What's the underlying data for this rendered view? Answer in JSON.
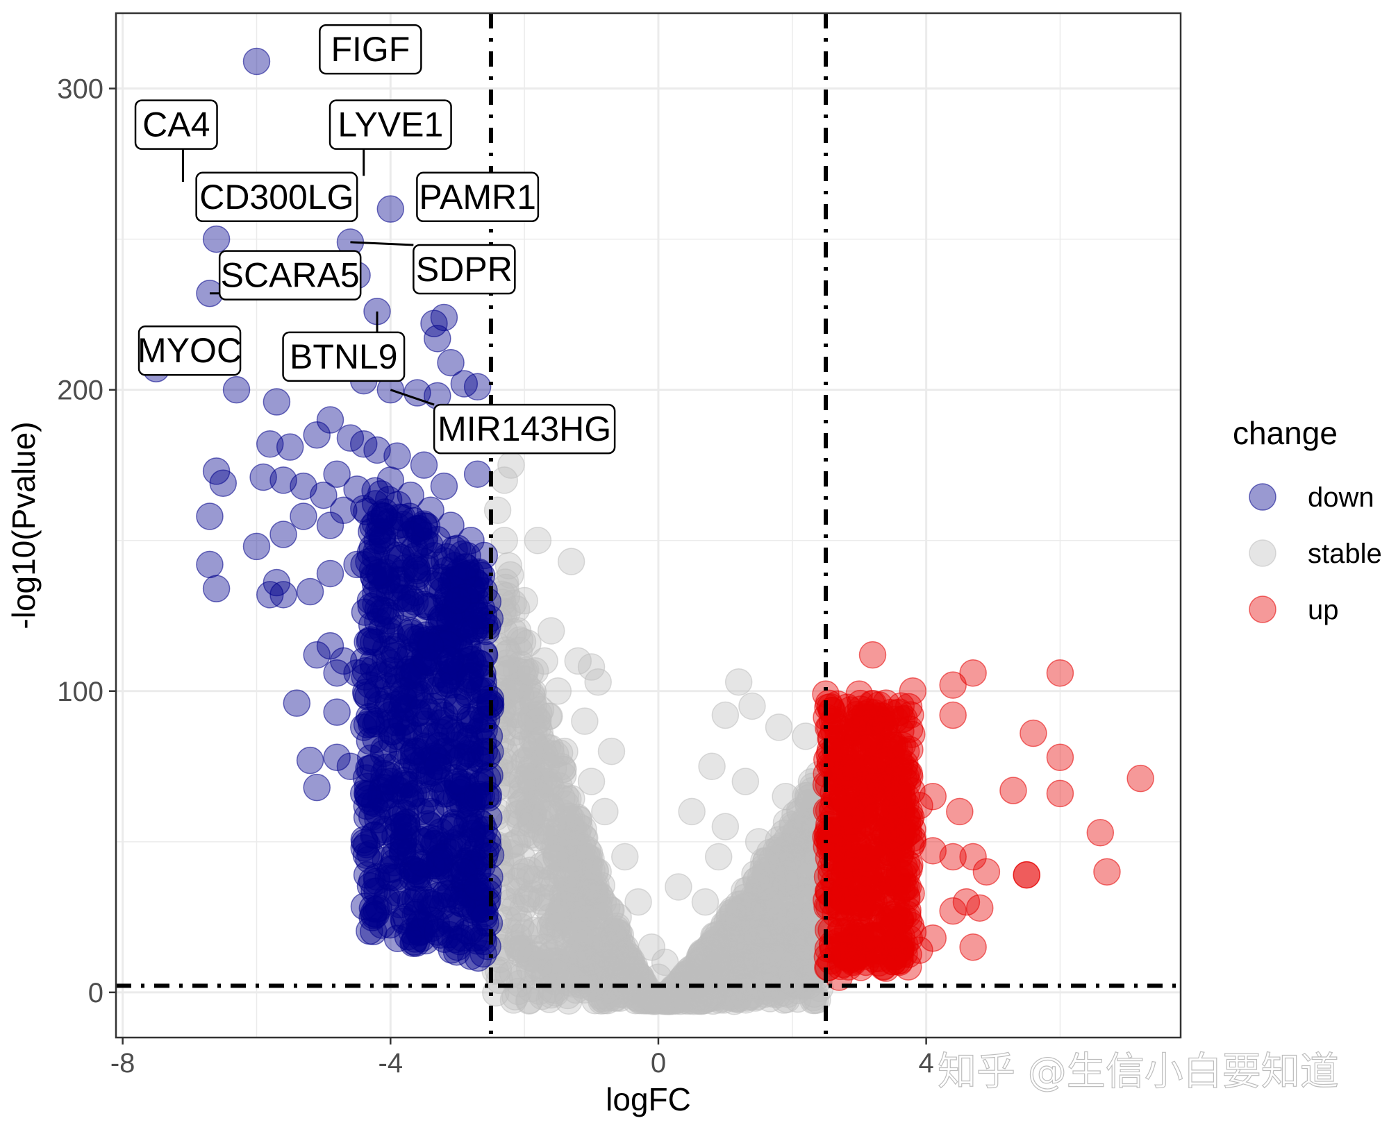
{
  "chart_data": {
    "type": "scatter",
    "title": "",
    "xlabel": "logFC",
    "ylabel": "-log10(Pvalue)",
    "xlim": [
      -8.1,
      7.8
    ],
    "ylim": [
      -15,
      325
    ],
    "x_ticks": [
      -8,
      -4,
      0,
      4
    ],
    "y_ticks": [
      0,
      100,
      200,
      300
    ],
    "x_tick_labels": [
      "-8",
      "-4",
      "0",
      "4"
    ],
    "y_tick_labels": [
      "0",
      "100",
      "200",
      "300"
    ],
    "grid": true,
    "legend": {
      "title": "change",
      "placement": "right",
      "entries": [
        "down",
        "stable",
        "up"
      ]
    },
    "colors": {
      "down": "#00008B",
      "stable": "#BEBEBE",
      "up": "#E50000"
    },
    "point_alpha": 0.4,
    "thresholds": {
      "logFC": [
        -2.5,
        2.5
      ],
      "neg_log10_p": 2.2
    },
    "series": [
      {
        "name": "down",
        "note": "one dense band of points spans logFC -4.5 to -2.5, -log10(P) 10 to 160",
        "points": [
          [
            -6,
            309
          ],
          [
            -4.0,
            260
          ],
          [
            -6.6,
            250
          ],
          [
            -4.6,
            249
          ],
          [
            -6.7,
            232
          ],
          [
            -4.2,
            226
          ],
          [
            -4.5,
            238
          ],
          [
            -3.2,
            224
          ],
          [
            -3.35,
            222
          ],
          [
            -3.3,
            217
          ],
          [
            -3.1,
            209
          ],
          [
            -7.5,
            207
          ],
          [
            -6.3,
            200
          ],
          [
            -5.7,
            196
          ],
          [
            -4.4,
            203
          ],
          [
            -4.0,
            200
          ],
          [
            -3.6,
            199
          ],
          [
            -3.3,
            198
          ],
          [
            -2.9,
            202
          ],
          [
            -2.7,
            201
          ],
          [
            -5.8,
            182
          ],
          [
            -5.5,
            181
          ],
          [
            -5.1,
            185
          ],
          [
            -4.9,
            190
          ],
          [
            -4.6,
            184
          ],
          [
            -4.4,
            182
          ],
          [
            -4.2,
            180
          ],
          [
            -3.9,
            178
          ],
          [
            -6.6,
            173
          ],
          [
            -6.5,
            169
          ],
          [
            -5.9,
            171
          ],
          [
            -5.6,
            170
          ],
          [
            -5.3,
            168
          ],
          [
            -5.0,
            165
          ],
          [
            -4.8,
            172
          ],
          [
            -4.5,
            167
          ],
          [
            -3.5,
            175
          ],
          [
            -3.2,
            168
          ],
          [
            -2.7,
            172
          ],
          [
            -6.7,
            158
          ],
          [
            -5.6,
            152
          ],
          [
            -5.3,
            158
          ],
          [
            -4.9,
            155
          ],
          [
            -4.7,
            160
          ],
          [
            -4.1,
            158
          ],
          [
            -6.0,
            148
          ],
          [
            -5.7,
            136
          ],
          [
            -5.8,
            132
          ],
          [
            -5.6,
            132
          ],
          [
            -6.7,
            142
          ],
          [
            -6.6,
            134
          ],
          [
            -5.2,
            133
          ],
          [
            -4.9,
            139
          ],
          [
            -4.5,
            142
          ],
          [
            -5.1,
            112
          ],
          [
            -4.9,
            115
          ],
          [
            -4.7,
            110
          ],
          [
            -4.8,
            106
          ],
          [
            -4.5,
            106
          ],
          [
            -4.3,
            117
          ],
          [
            -5.4,
            96
          ],
          [
            -4.8,
            93
          ],
          [
            -4.4,
            88
          ],
          [
            -5.2,
            77
          ],
          [
            -5.1,
            68
          ],
          [
            -4.8,
            78
          ],
          [
            -4.6,
            75
          ],
          [
            -4.4,
            66
          ],
          [
            -4.2,
            60
          ],
          [
            -4.3,
            46
          ],
          [
            -4.0,
            41
          ],
          [
            -3.9,
            33
          ],
          [
            -3.7,
            30
          ],
          [
            -3.4,
            24
          ],
          [
            -3.3,
            20
          ],
          [
            -3.0,
            15
          ],
          [
            -2.8,
            12
          ],
          [
            -4.0,
            170
          ],
          [
            -3.7,
            165
          ],
          [
            -3.4,
            160
          ],
          [
            -3.1,
            155
          ],
          [
            -2.8,
            150
          ],
          [
            -2.6,
            145
          ],
          [
            -4.2,
            150
          ],
          [
            -3.9,
            145
          ],
          [
            -3.6,
            140
          ],
          [
            -3.3,
            135
          ],
          [
            -3.0,
            130
          ],
          [
            -2.7,
            125
          ],
          [
            -4.3,
            130
          ],
          [
            -4.0,
            125
          ],
          [
            -3.7,
            120
          ],
          [
            -3.4,
            115
          ],
          [
            -3.1,
            110
          ],
          [
            -2.8,
            105
          ],
          [
            -2.6,
            100
          ],
          [
            -4.4,
            110
          ],
          [
            -4.1,
            105
          ],
          [
            -3.8,
            100
          ],
          [
            -3.5,
            95
          ],
          [
            -3.2,
            90
          ],
          [
            -2.9,
            85
          ],
          [
            -2.6,
            80
          ],
          [
            -4.2,
            90
          ],
          [
            -3.9,
            85
          ],
          [
            -3.6,
            80
          ],
          [
            -3.3,
            75
          ],
          [
            -3.0,
            70
          ],
          [
            -2.7,
            65
          ],
          [
            -4.0,
            70
          ],
          [
            -3.7,
            65
          ],
          [
            -3.4,
            60
          ],
          [
            -3.1,
            55
          ],
          [
            -2.8,
            50
          ],
          [
            -2.6,
            45
          ],
          [
            -3.8,
            55
          ],
          [
            -3.5,
            50
          ],
          [
            -3.2,
            45
          ],
          [
            -2.9,
            40
          ],
          [
            -2.7,
            35
          ],
          [
            -2.6,
            25
          ]
        ]
      },
      {
        "name": "stable",
        "note": "a dense V-shaped cloud spans logFC -2.5 to 2.5",
        "points": [
          [
            -2.2,
            175
          ],
          [
            -2.3,
            170
          ],
          [
            -2.4,
            160
          ],
          [
            -2.3,
            150
          ],
          [
            -1.8,
            150
          ],
          [
            -1.3,
            143
          ],
          [
            -2.0,
            130
          ],
          [
            -1.6,
            120
          ],
          [
            -1.2,
            110
          ],
          [
            -1.0,
            108
          ],
          [
            -0.9,
            103
          ],
          [
            -2.2,
            100
          ],
          [
            -1.8,
            90
          ],
          [
            -1.4,
            80
          ],
          [
            -1.0,
            70
          ],
          [
            -0.8,
            60
          ],
          [
            -0.5,
            45
          ],
          [
            -0.3,
            30
          ],
          [
            -0.1,
            15
          ],
          [
            0.0,
            5
          ],
          [
            -2.4,
            60
          ],
          [
            -2.0,
            40
          ],
          [
            -1.5,
            25
          ],
          [
            -1.0,
            10
          ],
          [
            -0.5,
            2
          ],
          [
            1.2,
            103
          ],
          [
            1.0,
            92
          ],
          [
            1.4,
            95
          ],
          [
            1.8,
            88
          ],
          [
            2.2,
            85
          ],
          [
            0.8,
            75
          ],
          [
            1.3,
            70
          ],
          [
            1.9,
            65
          ],
          [
            0.5,
            60
          ],
          [
            1.0,
            55
          ],
          [
            1.5,
            50
          ],
          [
            2.0,
            45
          ],
          [
            2.4,
            40
          ],
          [
            0.3,
            35
          ],
          [
            0.7,
            30
          ],
          [
            1.2,
            25
          ],
          [
            1.7,
            20
          ],
          [
            2.2,
            15
          ],
          [
            0.1,
            10
          ],
          [
            0.5,
            5
          ],
          [
            1.0,
            3
          ],
          [
            1.5,
            2
          ],
          [
            2.0,
            3
          ],
          [
            2.4,
            8
          ],
          [
            -2.1,
            120
          ],
          [
            -1.7,
            110
          ],
          [
            -1.5,
            100
          ],
          [
            -1.1,
            90
          ],
          [
            -0.7,
            80
          ],
          [
            -2.3,
            80
          ],
          [
            -1.9,
            70
          ],
          [
            -1.3,
            55
          ],
          [
            -0.9,
            40
          ],
          [
            -0.6,
            25
          ],
          [
            -2.2,
            30
          ],
          [
            -1.7,
            15
          ],
          [
            -1.2,
            5
          ],
          [
            0.9,
            45
          ],
          [
            1.6,
            35
          ],
          [
            2.1,
            25
          ]
        ]
      },
      {
        "name": "up",
        "note": "one dense band of points spans logFC 2.5 to 3.8, -log10(P) 10 to 100",
        "points": [
          [
            3.2,
            112
          ],
          [
            6.0,
            106
          ],
          [
            4.7,
            106
          ],
          [
            4.4,
            102
          ],
          [
            3.8,
            100
          ],
          [
            2.5,
            99
          ],
          [
            3.0,
            99
          ],
          [
            3.4,
            96
          ],
          [
            3.6,
            93
          ],
          [
            4.4,
            92
          ],
          [
            5.6,
            86
          ],
          [
            6.0,
            78
          ],
          [
            7.2,
            71
          ],
          [
            5.3,
            67
          ],
          [
            6.0,
            66
          ],
          [
            4.1,
            65
          ],
          [
            4.5,
            60
          ],
          [
            6.6,
            53
          ],
          [
            4.1,
            47
          ],
          [
            4.4,
            45
          ],
          [
            4.7,
            45
          ],
          [
            4.9,
            40
          ],
          [
            5.5,
            39
          ],
          [
            5.5,
            39
          ],
          [
            6.7,
            40
          ],
          [
            4.6,
            30
          ],
          [
            4.8,
            28
          ],
          [
            4.4,
            27
          ],
          [
            4.7,
            15
          ],
          [
            4.1,
            18
          ],
          [
            3.9,
            14
          ],
          [
            3.6,
            10
          ],
          [
            2.6,
            90
          ],
          [
            2.9,
            88
          ],
          [
            3.2,
            85
          ],
          [
            3.5,
            82
          ],
          [
            3.7,
            80
          ],
          [
            2.6,
            75
          ],
          [
            2.8,
            72
          ],
          [
            3.1,
            70
          ],
          [
            3.4,
            68
          ],
          [
            3.7,
            65
          ],
          [
            3.9,
            62
          ],
          [
            2.6,
            60
          ],
          [
            2.9,
            57
          ],
          [
            3.2,
            55
          ],
          [
            3.5,
            52
          ],
          [
            3.8,
            50
          ],
          [
            2.6,
            45
          ],
          [
            2.8,
            42
          ],
          [
            3.1,
            40
          ],
          [
            3.4,
            38
          ],
          [
            3.7,
            35
          ],
          [
            2.6,
            30
          ],
          [
            2.9,
            28
          ],
          [
            3.2,
            25
          ],
          [
            3.5,
            22
          ],
          [
            3.8,
            20
          ],
          [
            2.6,
            15
          ],
          [
            2.8,
            12
          ],
          [
            3.1,
            10
          ],
          [
            3.4,
            8
          ],
          [
            2.7,
            5
          ]
        ]
      }
    ],
    "annotations": [
      {
        "gene": "FIGF",
        "point": [
          -6.0,
          309
        ],
        "label_at": [
          -4.3,
          313
        ],
        "leader": false
      },
      {
        "gene": "CA4",
        "point": [
          -7.1,
          269
        ],
        "label_at": [
          -7.2,
          288
        ],
        "leader": true
      },
      {
        "gene": "LYVE1",
        "point": [
          -4.4,
          271
        ],
        "label_at": [
          -4.0,
          288
        ],
        "leader": true
      },
      {
        "gene": "CD300LG",
        "point": [
          -5.9,
          264
        ],
        "label_at": [
          -5.7,
          264
        ],
        "leader": false
      },
      {
        "gene": "PAMR1",
        "point": [
          -4.0,
          260
        ],
        "label_at": [
          -2.7,
          264
        ],
        "leader": false
      },
      {
        "gene": "SDPR",
        "point": [
          -4.6,
          249
        ],
        "label_at": [
          -2.9,
          240
        ],
        "leader": true
      },
      {
        "gene": "SCARA5",
        "point": [
          -6.7,
          232
        ],
        "label_at": [
          -5.5,
          238
        ],
        "leader": true
      },
      {
        "gene": "MYOC",
        "point": [
          -7.4,
          210
        ],
        "label_at": [
          -7.0,
          213
        ],
        "leader": true
      },
      {
        "gene": "BTNL9",
        "point": [
          -4.2,
          226
        ],
        "label_at": [
          -4.7,
          211
        ],
        "leader": true
      },
      {
        "gene": "MIR143HG",
        "point": [
          -4.0,
          200
        ],
        "label_at": [
          -2.0,
          187
        ],
        "leader": true
      }
    ]
  },
  "watermark": "知乎 @生信小白要知道"
}
